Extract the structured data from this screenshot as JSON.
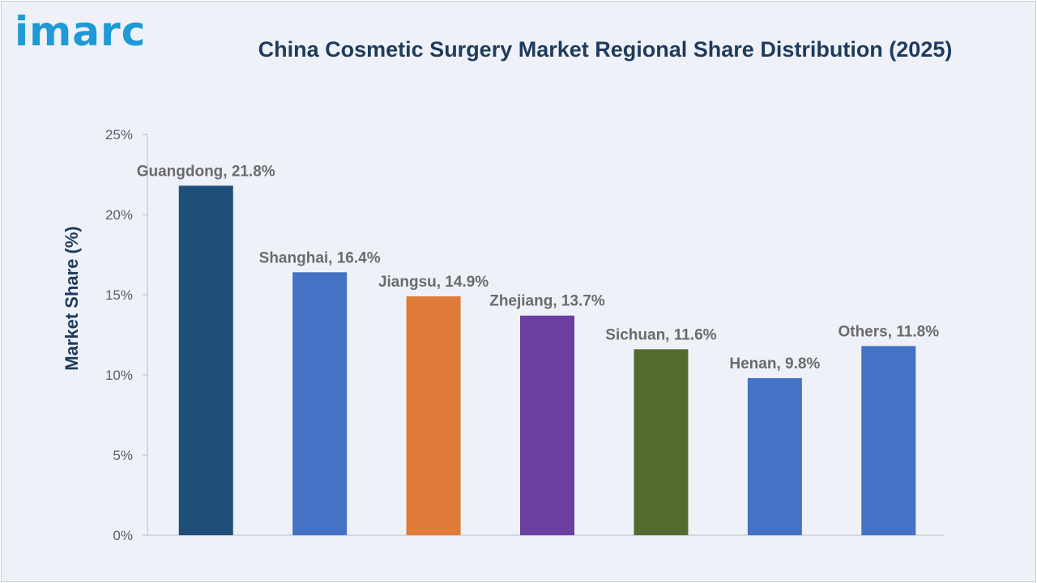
{
  "brand": {
    "logo_text": "imarc",
    "logo_color": "#1e9ad6"
  },
  "header": {
    "title": "China Cosmetic Surgery Market Regional Share Distribution (2025)"
  },
  "chart_data": {
    "type": "bar",
    "title": "China Cosmetic Surgery Market Regional Share Distribution (2025)",
    "xlabel": "",
    "ylabel": "Market Share (%)",
    "ylim": [
      0,
      25
    ],
    "yticks": [
      "0%",
      "5%",
      "10%",
      "15%",
      "20%",
      "25%"
    ],
    "ytick_values": [
      0,
      5,
      10,
      15,
      20,
      25
    ],
    "grid": false,
    "legend": "none",
    "categories": [
      "Guangdong",
      "Shanghai",
      "Jiangsu",
      "Zhejiang",
      "Sichuan",
      "Henan",
      "Others"
    ],
    "values": [
      21.8,
      16.4,
      14.9,
      13.7,
      11.6,
      9.8,
      11.8
    ],
    "data_labels": [
      "Guangdong, 21.8%",
      "Shanghai, 16.4%",
      "Jiangsu, 14.9%",
      "Zhejiang, 13.7%",
      "Sichuan, 11.6%",
      "Henan, 9.8%",
      "Others, 11.8%"
    ],
    "colors": [
      "#1f4e79",
      "#4472c4",
      "#e07b39",
      "#6b3fa0",
      "#546b30",
      "#4472c4",
      "#4472c4"
    ]
  }
}
